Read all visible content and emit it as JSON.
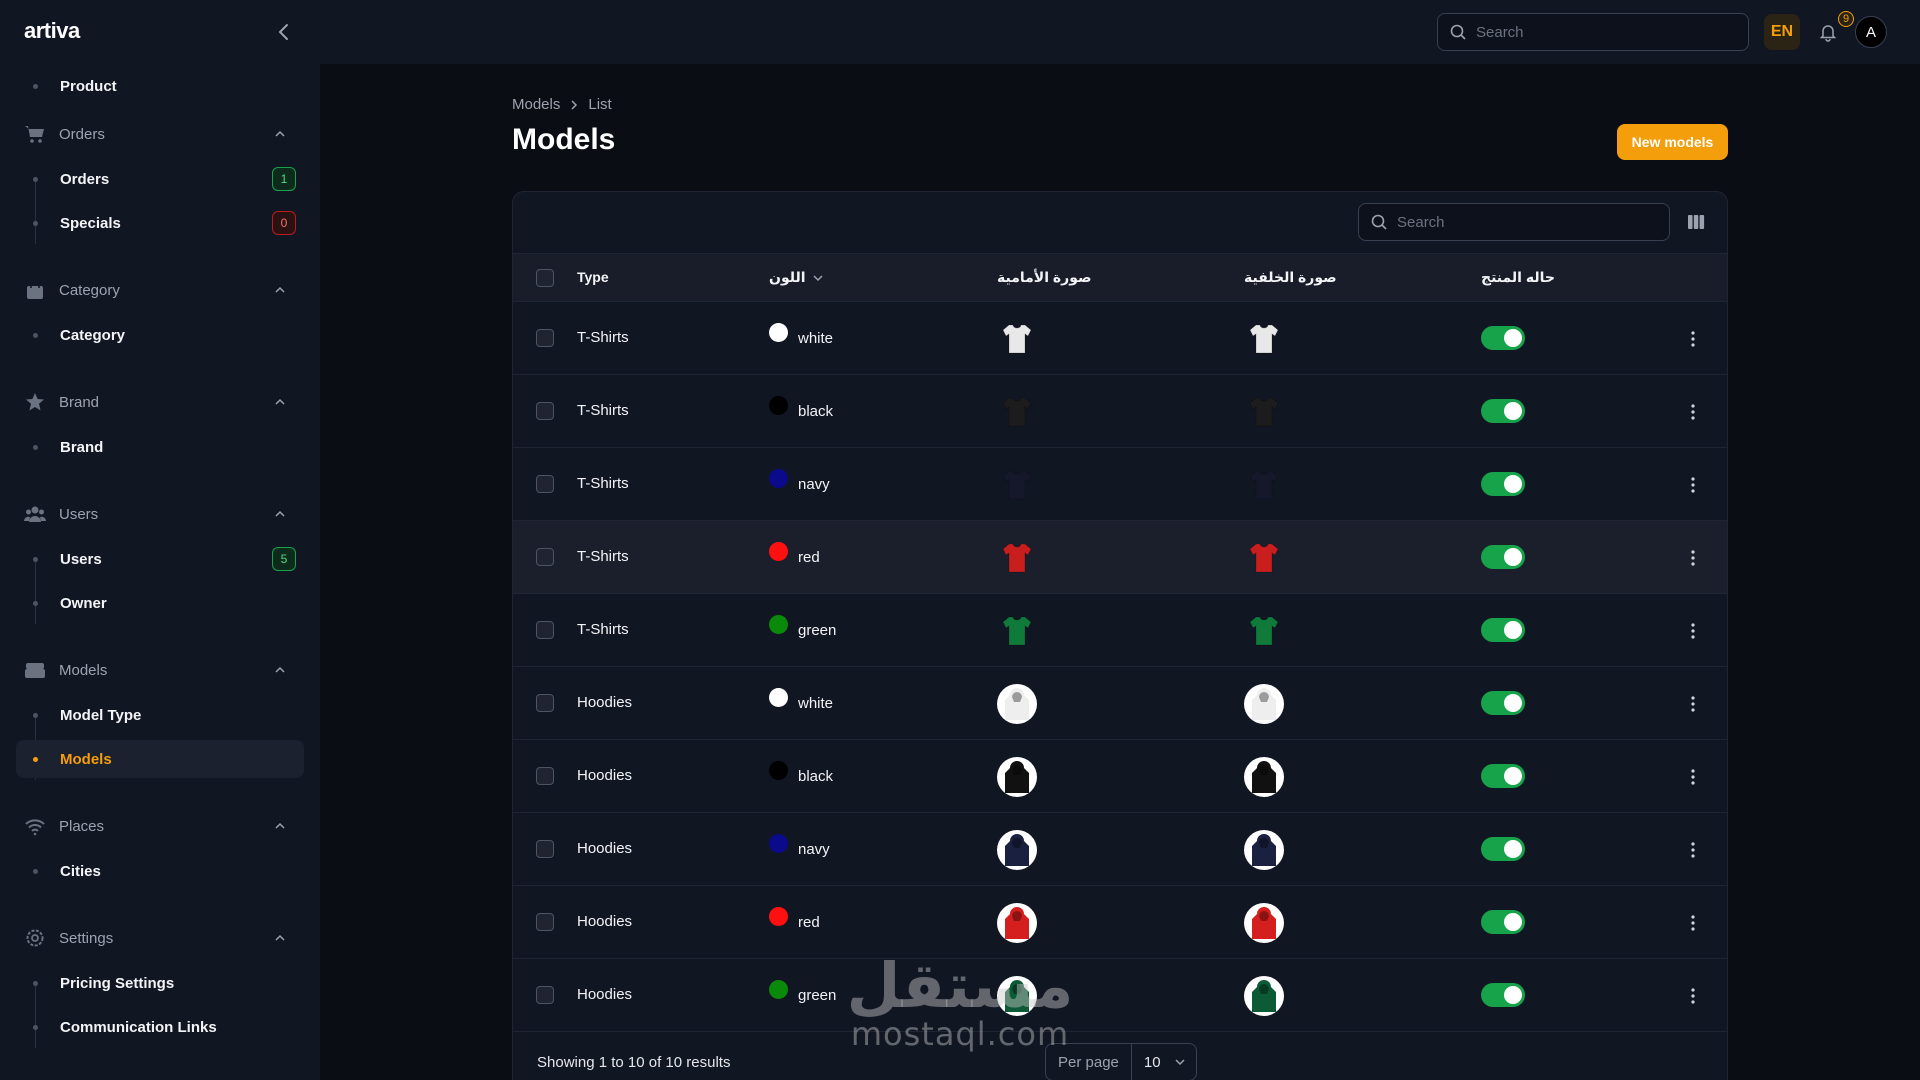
{
  "app": {
    "logo": "artiva"
  },
  "topbar": {
    "search_placeholder": "Search",
    "language": "EN",
    "notification_count": "9",
    "avatar_initial": "A"
  },
  "sidebar": {
    "top_item": "Product",
    "groups": [
      {
        "label": "Orders",
        "items": [
          {
            "label": "Orders",
            "badge": "1"
          },
          {
            "label": "Specials",
            "badge": "0"
          }
        ]
      },
      {
        "label": "Category",
        "items": [
          {
            "label": "Category"
          }
        ]
      },
      {
        "label": "Brand",
        "items": [
          {
            "label": "Brand"
          }
        ]
      },
      {
        "label": "Users",
        "items": [
          {
            "label": "Users",
            "badge": "5"
          },
          {
            "label": "Owner"
          }
        ]
      },
      {
        "label": "Models",
        "items": [
          {
            "label": "Model Type"
          },
          {
            "label": "Models"
          }
        ]
      },
      {
        "label": "Places",
        "items": [
          {
            "label": "Cities"
          }
        ]
      },
      {
        "label": "Settings",
        "items": [
          {
            "label": "Pricing Settings"
          },
          {
            "label": "Communication Links"
          }
        ]
      }
    ]
  },
  "page": {
    "breadcrumb": [
      "Models",
      "List"
    ],
    "title": "Models",
    "new_button": "New models",
    "table_search_placeholder": "Search"
  },
  "table": {
    "columns": [
      "Type",
      "اللون",
      "صورة الأمامية",
      "صورة الخلفية",
      "حاله المنتج"
    ],
    "rows": [
      {
        "type": "T-Shirts",
        "color": "white",
        "hex": "#ffffff",
        "product_status": true
      },
      {
        "type": "T-Shirts",
        "color": "black",
        "hex": "#000000",
        "product_status": true
      },
      {
        "type": "T-Shirts",
        "color": "navy",
        "hex": "#0a0a8a",
        "product_status": true
      },
      {
        "type": "T-Shirts",
        "color": "red",
        "hex": "#ff1010",
        "product_status": true
      },
      {
        "type": "T-Shirts",
        "color": "green",
        "hex": "#0a8a0a",
        "product_status": true
      },
      {
        "type": "Hoodies",
        "color": "white",
        "hex": "#ffffff",
        "product_status": true
      },
      {
        "type": "Hoodies",
        "color": "black",
        "hex": "#000000",
        "product_status": true
      },
      {
        "type": "Hoodies",
        "color": "navy",
        "hex": "#0a0a8a",
        "product_status": true
      },
      {
        "type": "Hoodies",
        "color": "red",
        "hex": "#ff1010",
        "product_status": true
      },
      {
        "type": "Hoodies",
        "color": "green",
        "hex": "#0a8a0a",
        "product_status": true
      }
    ],
    "footer": {
      "showing": "Showing 1 to 10 of 10 results",
      "per_page_label": "Per page",
      "per_page_value": "10"
    }
  },
  "watermark": {
    "arabic": "مستقل",
    "latin": "mostaql.com"
  },
  "colors": {
    "accent": "#f59e0b",
    "toggle_on": "#16a34a"
  }
}
